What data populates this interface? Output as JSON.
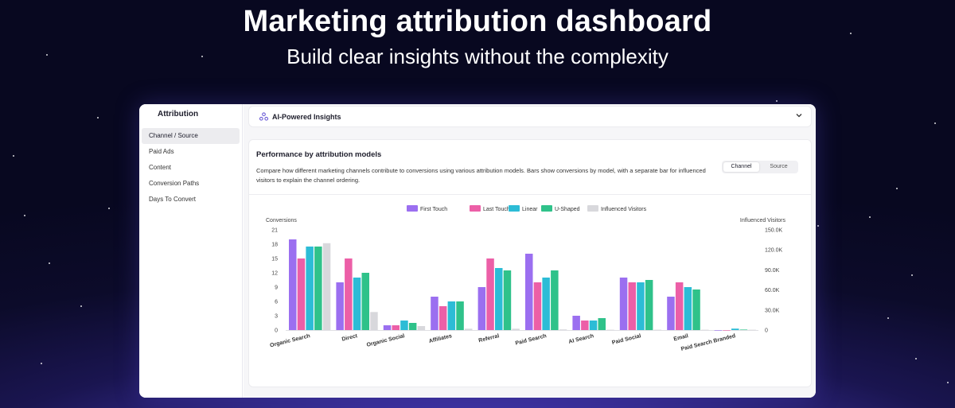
{
  "hero": {
    "title": "Marketing attribution dashboard",
    "subtitle": "Build clear insights without the complexity"
  },
  "sidebar": {
    "title": "Attribution",
    "items": [
      {
        "label": "Channel / Source",
        "active": true
      },
      {
        "label": "Paid Ads",
        "active": false
      },
      {
        "label": "Content",
        "active": false
      },
      {
        "label": "Conversion Paths",
        "active": false
      },
      {
        "label": "Days To Convert",
        "active": false
      }
    ]
  },
  "ai_bar": {
    "label": "AI-Powered Insights",
    "icon": "ai-nodes-icon"
  },
  "card": {
    "title": "Performance by attribution models",
    "description": "Compare how different marketing channels contribute to conversions using various attribution models. Bars show conversions by model, with a separate bar for influenced visitors to explain the channel ordering.",
    "toggle": {
      "selected": "Channel",
      "other": "Source"
    }
  },
  "chart_data": {
    "type": "bar",
    "categories": [
      "Organic Search",
      "Direct",
      "Organic Social",
      "Affiliates",
      "Referral",
      "Paid Search",
      "AI Search",
      "Paid Social",
      "Email",
      "Paid Search Branded"
    ],
    "series": [
      {
        "name": "First Touch",
        "color": "#9b6ff0",
        "values": [
          19,
          10,
          1,
          7,
          9,
          16,
          3,
          11,
          7,
          0
        ]
      },
      {
        "name": "Last Touch",
        "color": "#ec5fa7",
        "values": [
          15,
          15,
          1,
          5,
          15,
          10,
          2,
          10,
          10,
          0
        ]
      },
      {
        "name": "Linear",
        "color": "#2cbcd6",
        "values": [
          17.5,
          11,
          2,
          6,
          13,
          11,
          2,
          10,
          9,
          0.3
        ]
      },
      {
        "name": "U-Shaped",
        "color": "#2fc28a",
        "values": [
          17.5,
          12,
          1.5,
          6,
          12.5,
          12.5,
          2.5,
          10.5,
          8.5,
          0.1
        ]
      }
    ],
    "secondary_series": {
      "name": "Influenced Visitors",
      "color": "#d8d8dc",
      "values": [
        130000,
        27000,
        6000,
        2000,
        2000,
        1000,
        500,
        500,
        500,
        500
      ]
    },
    "ylabel": "Conversions",
    "y2label": "Influenced Visitors",
    "ylim": [
      0,
      21
    ],
    "yticks": [
      "0",
      "3",
      "6",
      "9",
      "12",
      "15",
      "18",
      "21"
    ],
    "y2lim": [
      0,
      150000
    ],
    "y2ticks": [
      "0",
      "30.0K",
      "60.0K",
      "90.0K",
      "120.0K",
      "150.0K"
    ],
    "legend_position": "top"
  }
}
